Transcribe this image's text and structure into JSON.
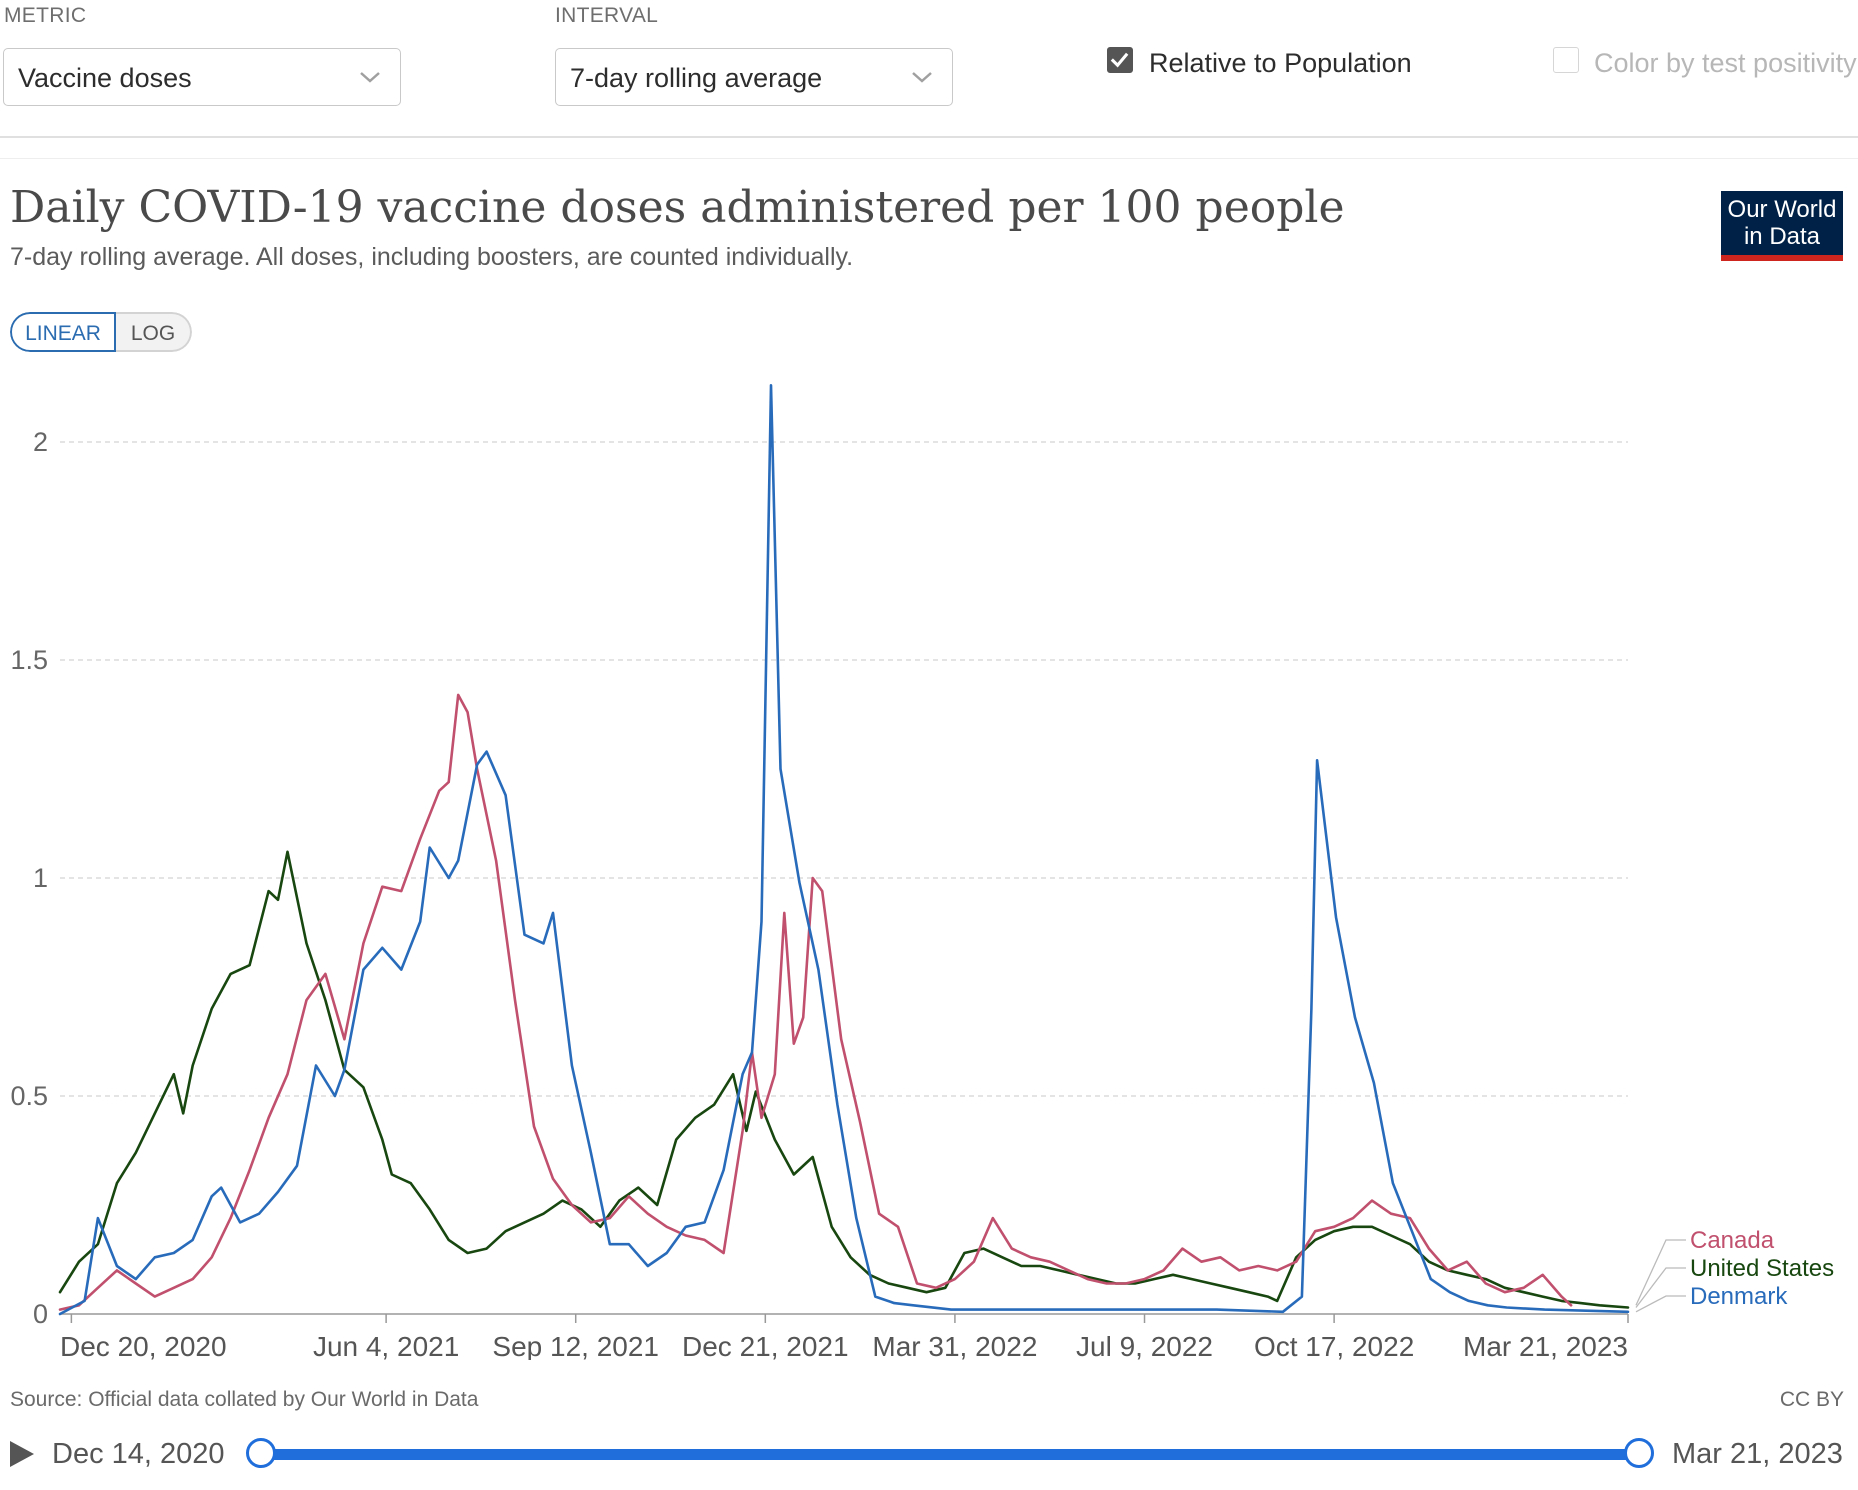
{
  "controls": {
    "metric_label": "METRIC",
    "metric_value": "Vaccine doses",
    "interval_label": "INTERVAL",
    "interval_value": "7-day rolling average",
    "relative_label": "Relative to Population",
    "relative_checked": true,
    "positivity_label": "Color by test positivity",
    "positivity_checked": false
  },
  "logo_line1": "Our World",
  "logo_line2": "in Data",
  "scale_toggle": {
    "linear": "LINEAR",
    "log": "LOG",
    "selected": "linear"
  },
  "footer": {
    "source": "Source: Official data collated by Our World in Data",
    "license": "CC BY",
    "start_date": "Dec 14, 2020",
    "end_date": "Mar 21, 2023"
  },
  "colors": {
    "canada": "#c0506d",
    "united_states": "#18470f",
    "denmark": "#286bbb",
    "accent": "#1f6edb"
  },
  "chart_data": {
    "type": "line",
    "title": "Daily COVID-19 vaccine doses administered per 100 people",
    "subtitle": "7-day rolling average. All doses, including boosters, are counted individually.",
    "x_axis": {
      "type": "date",
      "range": [
        "2020-12-14",
        "2023-03-21"
      ],
      "tick_labels": [
        "Dec 20, 2020",
        "Jun 4, 2021",
        "Sep 12, 2021",
        "Dec 21, 2021",
        "Mar 31, 2022",
        "Jul 9, 2022",
        "Oct 17, 2022",
        "Mar 21, 2023"
      ],
      "tick_dates": [
        "2020-12-20",
        "2021-06-04",
        "2021-09-12",
        "2021-12-21",
        "2022-03-31",
        "2022-07-09",
        "2022-10-17",
        "2023-03-21"
      ]
    },
    "y_axis": {
      "range": [
        0,
        2.2
      ],
      "ticks": [
        0,
        0.5,
        1,
        1.5,
        2
      ],
      "tick_labels": [
        "0",
        "0.5",
        "1",
        "1.5",
        "2"
      ]
    },
    "grid": "horizontal dashed",
    "legend_placement": "right end of lines",
    "series": [
      {
        "name": "Canada",
        "color": "#c0506d",
        "points": [
          [
            "2020-12-14",
            0.01
          ],
          [
            "2020-12-24",
            0.02
          ],
          [
            "2021-01-03",
            0.06
          ],
          [
            "2021-01-13",
            0.1
          ],
          [
            "2021-01-23",
            0.07
          ],
          [
            "2021-02-02",
            0.04
          ],
          [
            "2021-02-12",
            0.06
          ],
          [
            "2021-02-22",
            0.08
          ],
          [
            "2021-03-04",
            0.13
          ],
          [
            "2021-03-14",
            0.22
          ],
          [
            "2021-03-24",
            0.33
          ],
          [
            "2021-04-03",
            0.45
          ],
          [
            "2021-04-13",
            0.55
          ],
          [
            "2021-04-23",
            0.72
          ],
          [
            "2021-05-03",
            0.78
          ],
          [
            "2021-05-13",
            0.63
          ],
          [
            "2021-05-23",
            0.85
          ],
          [
            "2021-06-02",
            0.98
          ],
          [
            "2021-06-12",
            0.97
          ],
          [
            "2021-06-22",
            1.09
          ],
          [
            "2021-07-02",
            1.2
          ],
          [
            "2021-07-07",
            1.22
          ],
          [
            "2021-07-12",
            1.42
          ],
          [
            "2021-07-17",
            1.38
          ],
          [
            "2021-07-22",
            1.25
          ],
          [
            "2021-08-01",
            1.04
          ],
          [
            "2021-08-11",
            0.72
          ],
          [
            "2021-08-21",
            0.43
          ],
          [
            "2021-08-31",
            0.31
          ],
          [
            "2021-09-10",
            0.25
          ],
          [
            "2021-09-20",
            0.21
          ],
          [
            "2021-09-30",
            0.22
          ],
          [
            "2021-10-10",
            0.27
          ],
          [
            "2021-10-20",
            0.23
          ],
          [
            "2021-10-30",
            0.2
          ],
          [
            "2021-11-09",
            0.18
          ],
          [
            "2021-11-19",
            0.17
          ],
          [
            "2021-11-29",
            0.14
          ],
          [
            "2021-12-09",
            0.42
          ],
          [
            "2021-12-14",
            0.6
          ],
          [
            "2021-12-19",
            0.45
          ],
          [
            "2021-12-26",
            0.55
          ],
          [
            "2021-12-31",
            0.92
          ],
          [
            "2022-01-05",
            0.62
          ],
          [
            "2022-01-10",
            0.68
          ],
          [
            "2022-01-15",
            1.0
          ],
          [
            "2022-01-20",
            0.97
          ],
          [
            "2022-01-30",
            0.63
          ],
          [
            "2022-02-09",
            0.44
          ],
          [
            "2022-02-19",
            0.23
          ],
          [
            "2022-03-01",
            0.2
          ],
          [
            "2022-03-11",
            0.07
          ],
          [
            "2022-03-21",
            0.06
          ],
          [
            "2022-03-31",
            0.08
          ],
          [
            "2022-04-10",
            0.12
          ],
          [
            "2022-04-20",
            0.22
          ],
          [
            "2022-04-30",
            0.15
          ],
          [
            "2022-05-10",
            0.13
          ],
          [
            "2022-05-20",
            0.12
          ],
          [
            "2022-05-30",
            0.1
          ],
          [
            "2022-06-09",
            0.08
          ],
          [
            "2022-06-19",
            0.07
          ],
          [
            "2022-06-29",
            0.07
          ],
          [
            "2022-07-09",
            0.08
          ],
          [
            "2022-07-19",
            0.1
          ],
          [
            "2022-07-29",
            0.15
          ],
          [
            "2022-08-08",
            0.12
          ],
          [
            "2022-08-18",
            0.13
          ],
          [
            "2022-08-28",
            0.1
          ],
          [
            "2022-09-07",
            0.11
          ],
          [
            "2022-09-17",
            0.1
          ],
          [
            "2022-09-27",
            0.12
          ],
          [
            "2022-10-07",
            0.19
          ],
          [
            "2022-10-17",
            0.2
          ],
          [
            "2022-10-27",
            0.22
          ],
          [
            "2022-11-06",
            0.26
          ],
          [
            "2022-11-16",
            0.23
          ],
          [
            "2022-11-26",
            0.22
          ],
          [
            "2022-12-06",
            0.15
          ],
          [
            "2022-12-16",
            0.1
          ],
          [
            "2022-12-26",
            0.12
          ],
          [
            "2023-01-05",
            0.07
          ],
          [
            "2023-01-15",
            0.05
          ],
          [
            "2023-01-25",
            0.06
          ],
          [
            "2023-02-04",
            0.09
          ],
          [
            "2023-02-14",
            0.04
          ],
          [
            "2023-02-19",
            0.02
          ]
        ]
      },
      {
        "name": "United States",
        "color": "#18470f",
        "points": [
          [
            "2020-12-14",
            0.05
          ],
          [
            "2020-12-24",
            0.12
          ],
          [
            "2021-01-03",
            0.16
          ],
          [
            "2021-01-13",
            0.3
          ],
          [
            "2021-01-23",
            0.37
          ],
          [
            "2021-02-02",
            0.46
          ],
          [
            "2021-02-12",
            0.55
          ],
          [
            "2021-02-17",
            0.46
          ],
          [
            "2021-02-22",
            0.57
          ],
          [
            "2021-03-04",
            0.7
          ],
          [
            "2021-03-14",
            0.78
          ],
          [
            "2021-03-24",
            0.8
          ],
          [
            "2021-04-03",
            0.97
          ],
          [
            "2021-04-08",
            0.95
          ],
          [
            "2021-04-13",
            1.06
          ],
          [
            "2021-04-23",
            0.85
          ],
          [
            "2021-05-03",
            0.72
          ],
          [
            "2021-05-13",
            0.56
          ],
          [
            "2021-05-23",
            0.52
          ],
          [
            "2021-06-02",
            0.4
          ],
          [
            "2021-06-07",
            0.32
          ],
          [
            "2021-06-17",
            0.3
          ],
          [
            "2021-06-27",
            0.24
          ],
          [
            "2021-07-07",
            0.17
          ],
          [
            "2021-07-17",
            0.14
          ],
          [
            "2021-07-27",
            0.15
          ],
          [
            "2021-08-06",
            0.19
          ],
          [
            "2021-08-16",
            0.21
          ],
          [
            "2021-08-26",
            0.23
          ],
          [
            "2021-09-05",
            0.26
          ],
          [
            "2021-09-15",
            0.24
          ],
          [
            "2021-09-25",
            0.2
          ],
          [
            "2021-10-05",
            0.26
          ],
          [
            "2021-10-15",
            0.29
          ],
          [
            "2021-10-25",
            0.25
          ],
          [
            "2021-11-04",
            0.4
          ],
          [
            "2021-11-14",
            0.45
          ],
          [
            "2021-11-24",
            0.48
          ],
          [
            "2021-12-04",
            0.55
          ],
          [
            "2021-12-11",
            0.42
          ],
          [
            "2021-12-16",
            0.51
          ],
          [
            "2021-12-26",
            0.4
          ],
          [
            "2022-01-05",
            0.32
          ],
          [
            "2022-01-15",
            0.36
          ],
          [
            "2022-01-25",
            0.2
          ],
          [
            "2022-02-04",
            0.13
          ],
          [
            "2022-02-14",
            0.09
          ],
          [
            "2022-02-24",
            0.07
          ],
          [
            "2022-03-06",
            0.06
          ],
          [
            "2022-03-16",
            0.05
          ],
          [
            "2022-03-26",
            0.06
          ],
          [
            "2022-04-05",
            0.14
          ],
          [
            "2022-04-15",
            0.15
          ],
          [
            "2022-04-25",
            0.13
          ],
          [
            "2022-05-05",
            0.11
          ],
          [
            "2022-05-15",
            0.11
          ],
          [
            "2022-05-25",
            0.1
          ],
          [
            "2022-06-04",
            0.09
          ],
          [
            "2022-06-14",
            0.08
          ],
          [
            "2022-06-24",
            0.07
          ],
          [
            "2022-07-04",
            0.07
          ],
          [
            "2022-07-14",
            0.08
          ],
          [
            "2022-07-24",
            0.09
          ],
          [
            "2022-08-03",
            0.08
          ],
          [
            "2022-08-13",
            0.07
          ],
          [
            "2022-08-23",
            0.06
          ],
          [
            "2022-09-02",
            0.05
          ],
          [
            "2022-09-12",
            0.04
          ],
          [
            "2022-09-17",
            0.03
          ],
          [
            "2022-09-27",
            0.13
          ],
          [
            "2022-10-07",
            0.17
          ],
          [
            "2022-10-17",
            0.19
          ],
          [
            "2022-10-27",
            0.2
          ],
          [
            "2022-11-06",
            0.2
          ],
          [
            "2022-11-16",
            0.18
          ],
          [
            "2022-11-26",
            0.16
          ],
          [
            "2022-12-06",
            0.12
          ],
          [
            "2022-12-16",
            0.1
          ],
          [
            "2022-12-26",
            0.09
          ],
          [
            "2023-01-05",
            0.08
          ],
          [
            "2023-01-15",
            0.06
          ],
          [
            "2023-01-25",
            0.05
          ],
          [
            "2023-02-04",
            0.04
          ],
          [
            "2023-02-14",
            0.03
          ],
          [
            "2023-02-24",
            0.025
          ],
          [
            "2023-03-06",
            0.02
          ],
          [
            "2023-03-21",
            0.015
          ]
        ]
      },
      {
        "name": "Denmark",
        "color": "#286bbb",
        "points": [
          [
            "2020-12-14",
            0.0
          ],
          [
            "2020-12-27",
            0.03
          ],
          [
            "2021-01-03",
            0.22
          ],
          [
            "2021-01-13",
            0.11
          ],
          [
            "2021-01-23",
            0.08
          ],
          [
            "2021-02-02",
            0.13
          ],
          [
            "2021-02-12",
            0.14
          ],
          [
            "2021-02-22",
            0.17
          ],
          [
            "2021-03-04",
            0.27
          ],
          [
            "2021-03-09",
            0.29
          ],
          [
            "2021-03-19",
            0.21
          ],
          [
            "2021-03-29",
            0.23
          ],
          [
            "2021-04-08",
            0.28
          ],
          [
            "2021-04-18",
            0.34
          ],
          [
            "2021-04-28",
            0.57
          ],
          [
            "2021-05-08",
            0.5
          ],
          [
            "2021-05-13",
            0.56
          ],
          [
            "2021-05-23",
            0.79
          ],
          [
            "2021-06-02",
            0.84
          ],
          [
            "2021-06-12",
            0.79
          ],
          [
            "2021-06-22",
            0.9
          ],
          [
            "2021-06-27",
            1.07
          ],
          [
            "2021-07-07",
            1.0
          ],
          [
            "2021-07-12",
            1.04
          ],
          [
            "2021-07-22",
            1.26
          ],
          [
            "2021-07-27",
            1.29
          ],
          [
            "2021-08-06",
            1.19
          ],
          [
            "2021-08-16",
            0.87
          ],
          [
            "2021-08-26",
            0.85
          ],
          [
            "2021-08-31",
            0.92
          ],
          [
            "2021-09-10",
            0.57
          ],
          [
            "2021-09-20",
            0.37
          ],
          [
            "2021-09-30",
            0.16
          ],
          [
            "2021-10-10",
            0.16
          ],
          [
            "2021-10-20",
            0.11
          ],
          [
            "2021-10-30",
            0.14
          ],
          [
            "2021-11-09",
            0.2
          ],
          [
            "2021-11-19",
            0.21
          ],
          [
            "2021-11-29",
            0.33
          ],
          [
            "2021-12-09",
            0.55
          ],
          [
            "2021-12-14",
            0.6
          ],
          [
            "2021-12-19",
            0.9
          ],
          [
            "2021-12-24",
            2.13
          ],
          [
            "2021-12-29",
            1.25
          ],
          [
            "2022-01-08",
            0.99
          ],
          [
            "2022-01-18",
            0.79
          ],
          [
            "2022-01-28",
            0.48
          ],
          [
            "2022-02-07",
            0.22
          ],
          [
            "2022-02-17",
            0.04
          ],
          [
            "2022-02-27",
            0.025
          ],
          [
            "2022-03-09",
            0.02
          ],
          [
            "2022-03-29",
            0.01
          ],
          [
            "2022-04-18",
            0.01
          ],
          [
            "2022-05-28",
            0.01
          ],
          [
            "2022-07-07",
            0.01
          ],
          [
            "2022-08-16",
            0.01
          ],
          [
            "2022-09-20",
            0.005
          ],
          [
            "2022-09-30",
            0.04
          ],
          [
            "2022-10-05",
            0.7
          ],
          [
            "2022-10-08",
            1.27
          ],
          [
            "2022-10-18",
            0.91
          ],
          [
            "2022-10-28",
            0.68
          ],
          [
            "2022-11-07",
            0.53
          ],
          [
            "2022-11-17",
            0.3
          ],
          [
            "2022-11-27",
            0.19
          ],
          [
            "2022-12-07",
            0.08
          ],
          [
            "2022-12-17",
            0.05
          ],
          [
            "2022-12-27",
            0.03
          ],
          [
            "2023-01-06",
            0.02
          ],
          [
            "2023-01-16",
            0.015
          ],
          [
            "2023-02-05",
            0.01
          ],
          [
            "2023-03-21",
            0.005
          ]
        ]
      }
    ]
  }
}
